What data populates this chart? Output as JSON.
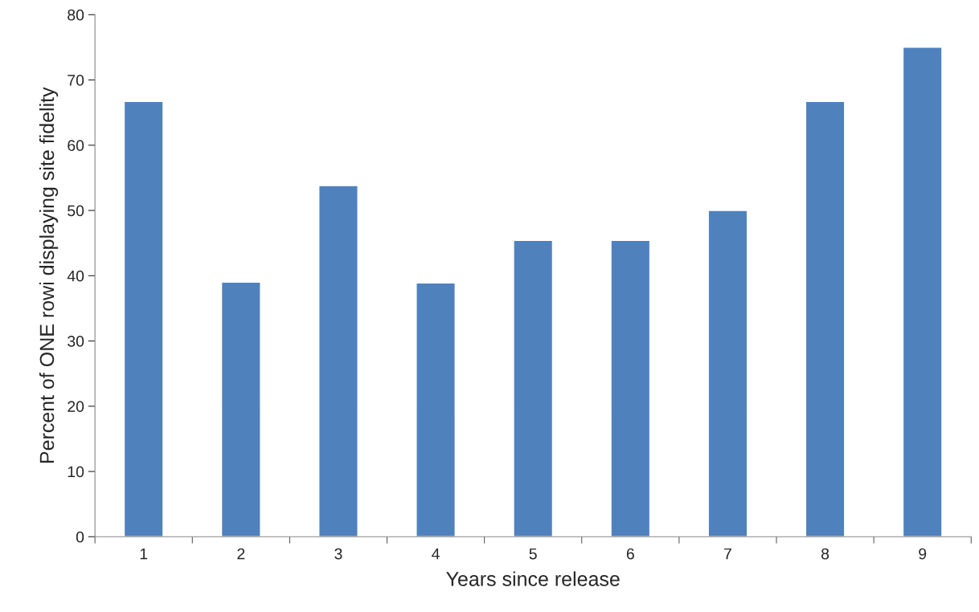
{
  "chart_data": {
    "type": "bar",
    "xlabel": "Years since release",
    "ylabel": "Percent of ONE rowi displaying site fidelity",
    "categories": [
      "1",
      "2",
      "3",
      "4",
      "5",
      "6",
      "7",
      "8",
      "9"
    ],
    "values": [
      66.7,
      39.0,
      53.8,
      38.9,
      45.4,
      45.4,
      50.0,
      66.7,
      75.0
    ],
    "color": "#4f81bd",
    "ylim": [
      0,
      80
    ],
    "yticks": [
      0,
      10,
      20,
      30,
      40,
      50,
      60,
      70,
      80
    ],
    "grid": false
  }
}
